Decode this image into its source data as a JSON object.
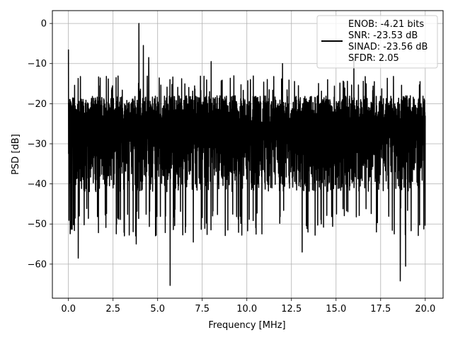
{
  "chart_data": {
    "type": "line",
    "xlabel": "Frequency [MHz]",
    "ylabel": "PSD [dB]",
    "xlim": [
      -0.9,
      21.0
    ],
    "ylim": [
      -68.5,
      3.2
    ],
    "xticks": [
      0.0,
      2.5,
      5.0,
      7.5,
      10.0,
      12.5,
      15.0,
      17.5,
      20.0
    ],
    "xtick_labels": [
      "0.0",
      "2.5",
      "5.0",
      "7.5",
      "10.0",
      "12.5",
      "15.0",
      "17.5",
      "20.0"
    ],
    "yticks": [
      0,
      -10,
      -20,
      -30,
      -40,
      -50,
      -60
    ],
    "ytick_labels": [
      "0",
      "−10",
      "−20",
      "−30",
      "−40",
      "−50",
      "−60"
    ],
    "grid": true,
    "legend_position": "top-right",
    "series": [
      {
        "name": "ENOB: -4.21 bits\nSNR: -23.53 dB\nSINAD: -23.56 dB\nSFDR: 2.05",
        "color": "#000000",
        "x_range": [
          0.0,
          20.0
        ],
        "noise_floor": {
          "typical_top": -15,
          "typical_bottom": -42
        },
        "peaks": [
          {
            "x": 0.0,
            "y": -6.5
          },
          {
            "x": 3.95,
            "y": 0.0
          },
          {
            "x": 4.2,
            "y": -5.5
          },
          {
            "x": 4.5,
            "y": -8.5
          },
          {
            "x": 8.0,
            "y": -9.5
          },
          {
            "x": 12.0,
            "y": -10.0
          },
          {
            "x": 16.0,
            "y": -9.0
          }
        ],
        "troughs": [
          {
            "x": 0.55,
            "y": -58.5
          },
          {
            "x": 5.7,
            "y": -65.3
          },
          {
            "x": 18.6,
            "y": -64.2
          },
          {
            "x": 18.9,
            "y": -60.5
          },
          {
            "x": 13.1,
            "y": -57.0
          },
          {
            "x": 3.8,
            "y": -55.0
          },
          {
            "x": 7.0,
            "y": -54.5
          }
        ]
      }
    ]
  }
}
